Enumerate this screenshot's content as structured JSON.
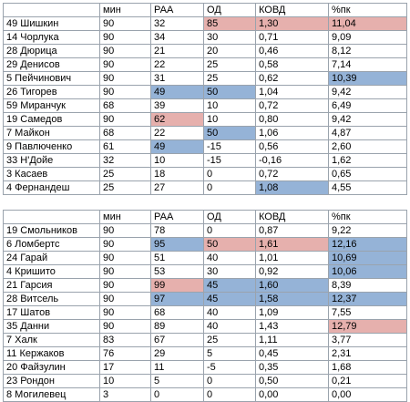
{
  "colors": {
    "blue": "#95b3d7",
    "red": "#e6b0ad"
  },
  "top_table": {
    "headers": [
      "",
      "мин",
      "РАА",
      "ОД",
      "КОВД",
      "%пк"
    ],
    "rows": [
      {
        "name": "49 Шишкин",
        "min": "90",
        "raa": "32",
        "od": "85",
        "kovd": "1,30",
        "pk": "11,04",
        "hl": {
          "od": "red",
          "kovd": "red",
          "pk": "red"
        }
      },
      {
        "name": "14 Чорлука",
        "min": "90",
        "raa": "34",
        "od": "30",
        "kovd": "0,71",
        "pk": "9,09",
        "hl": {}
      },
      {
        "name": "28 Дюрица",
        "min": "90",
        "raa": "21",
        "od": "20",
        "kovd": "0,46",
        "pk": "8,12",
        "hl": {}
      },
      {
        "name": "29 Денисов",
        "min": "90",
        "raa": "22",
        "od": "25",
        "kovd": "0,58",
        "pk": "7,14",
        "hl": {}
      },
      {
        "name": "5 Пейчинович",
        "min": "90",
        "raa": "31",
        "od": "25",
        "kovd": "0,62",
        "pk": "10,39",
        "hl": {
          "pk": "blue"
        }
      },
      {
        "name": "26 Тигорев",
        "min": "90",
        "raa": "49",
        "od": "50",
        "kovd": "1,04",
        "pk": "9,42",
        "hl": {
          "raa": "blue",
          "od": "blue"
        }
      },
      {
        "name": "59 Миранчук",
        "min": "68",
        "raa": "39",
        "od": "10",
        "kovd": "0,72",
        "pk": "6,49",
        "hl": {}
      },
      {
        "name": "19 Самедов",
        "min": "90",
        "raa": "62",
        "od": "10",
        "kovd": "0,80",
        "pk": "9,42",
        "hl": {
          "raa": "red"
        }
      },
      {
        "name": "7 Майкон",
        "min": "68",
        "raa": "22",
        "od": "50",
        "kovd": "1,06",
        "pk": "4,87",
        "hl": {
          "od": "blue"
        }
      },
      {
        "name": "9 Павлюченко",
        "min": "61",
        "raa": "49",
        "od": "-15",
        "kovd": "0,56",
        "pk": "2,60",
        "hl": {
          "raa": "blue"
        }
      },
      {
        "name": "33 Н'Дойе",
        "min": "32",
        "raa": "10",
        "od": "-15",
        "kovd": "-0,16",
        "pk": "1,62",
        "hl": {}
      },
      {
        "name": "3 Касаев",
        "min": "25",
        "raa": "18",
        "od": "0",
        "kovd": "0,72",
        "pk": "0,65",
        "hl": {}
      },
      {
        "name": "4 Фернандеш",
        "min": "25",
        "raa": "27",
        "od": "0",
        "kovd": "1,08",
        "pk": "4,55",
        "hl": {
          "kovd": "blue"
        }
      }
    ]
  },
  "bottom_table": {
    "headers": [
      "",
      "мин",
      "РАА",
      "ОД",
      "КОВД",
      "%пк"
    ],
    "rows": [
      {
        "name": "19 Смольников",
        "min": "90",
        "raa": "78",
        "od": "0",
        "kovd": "0,87",
        "pk": "9,22",
        "hl": {}
      },
      {
        "name": "6 Ломбертс",
        "min": "90",
        "raa": "95",
        "od": "50",
        "kovd": "1,61",
        "pk": "12,16",
        "hl": {
          "raa": "blue",
          "od": "red",
          "kovd": "red",
          "pk": "blue"
        }
      },
      {
        "name": "24 Гарай",
        "min": "90",
        "raa": "51",
        "od": "40",
        "kovd": "1,01",
        "pk": "10,69",
        "hl": {
          "pk": "blue"
        }
      },
      {
        "name": "4 Кришито",
        "min": "90",
        "raa": "53",
        "od": "30",
        "kovd": "0,92",
        "pk": "10,06",
        "hl": {
          "pk": "blue"
        }
      },
      {
        "name": "21 Гарсия",
        "min": "90",
        "raa": "99",
        "od": "45",
        "kovd": "1,60",
        "pk": "8,39",
        "hl": {
          "raa": "red",
          "od": "blue",
          "kovd": "blue"
        }
      },
      {
        "name": "28 Витсель",
        "min": "90",
        "raa": "97",
        "od": "45",
        "kovd": "1,58",
        "pk": "12,37",
        "hl": {
          "raa": "blue",
          "od": "blue",
          "kovd": "blue",
          "pk": "blue"
        }
      },
      {
        "name": "17 Шатов",
        "min": "90",
        "raa": "68",
        "od": "40",
        "kovd": "1,09",
        "pk": "7,55",
        "hl": {}
      },
      {
        "name": "35 Данни",
        "min": "90",
        "raa": "89",
        "od": "40",
        "kovd": "1,43",
        "pk": "12,79",
        "hl": {
          "pk": "red"
        }
      },
      {
        "name": "7 Халк",
        "min": "83",
        "raa": "67",
        "od": "25",
        "kovd": "1,11",
        "pk": "3,77",
        "hl": {}
      },
      {
        "name": "11 Кержаков",
        "min": "76",
        "raa": "29",
        "od": "5",
        "kovd": "0,45",
        "pk": "2,31",
        "hl": {}
      },
      {
        "name": "20 Файзулин",
        "min": "17",
        "raa": "11",
        "od": "-5",
        "kovd": "0,35",
        "pk": "1,68",
        "hl": {}
      },
      {
        "name": "23 Рондон",
        "min": "10",
        "raa": "5",
        "od": "0",
        "kovd": "0,50",
        "pk": "0,21",
        "hl": {}
      },
      {
        "name": "8 Могилевец",
        "min": "3",
        "raa": "0",
        "od": "0",
        "kovd": "0,00",
        "pk": "0,00",
        "hl": {}
      }
    ]
  }
}
